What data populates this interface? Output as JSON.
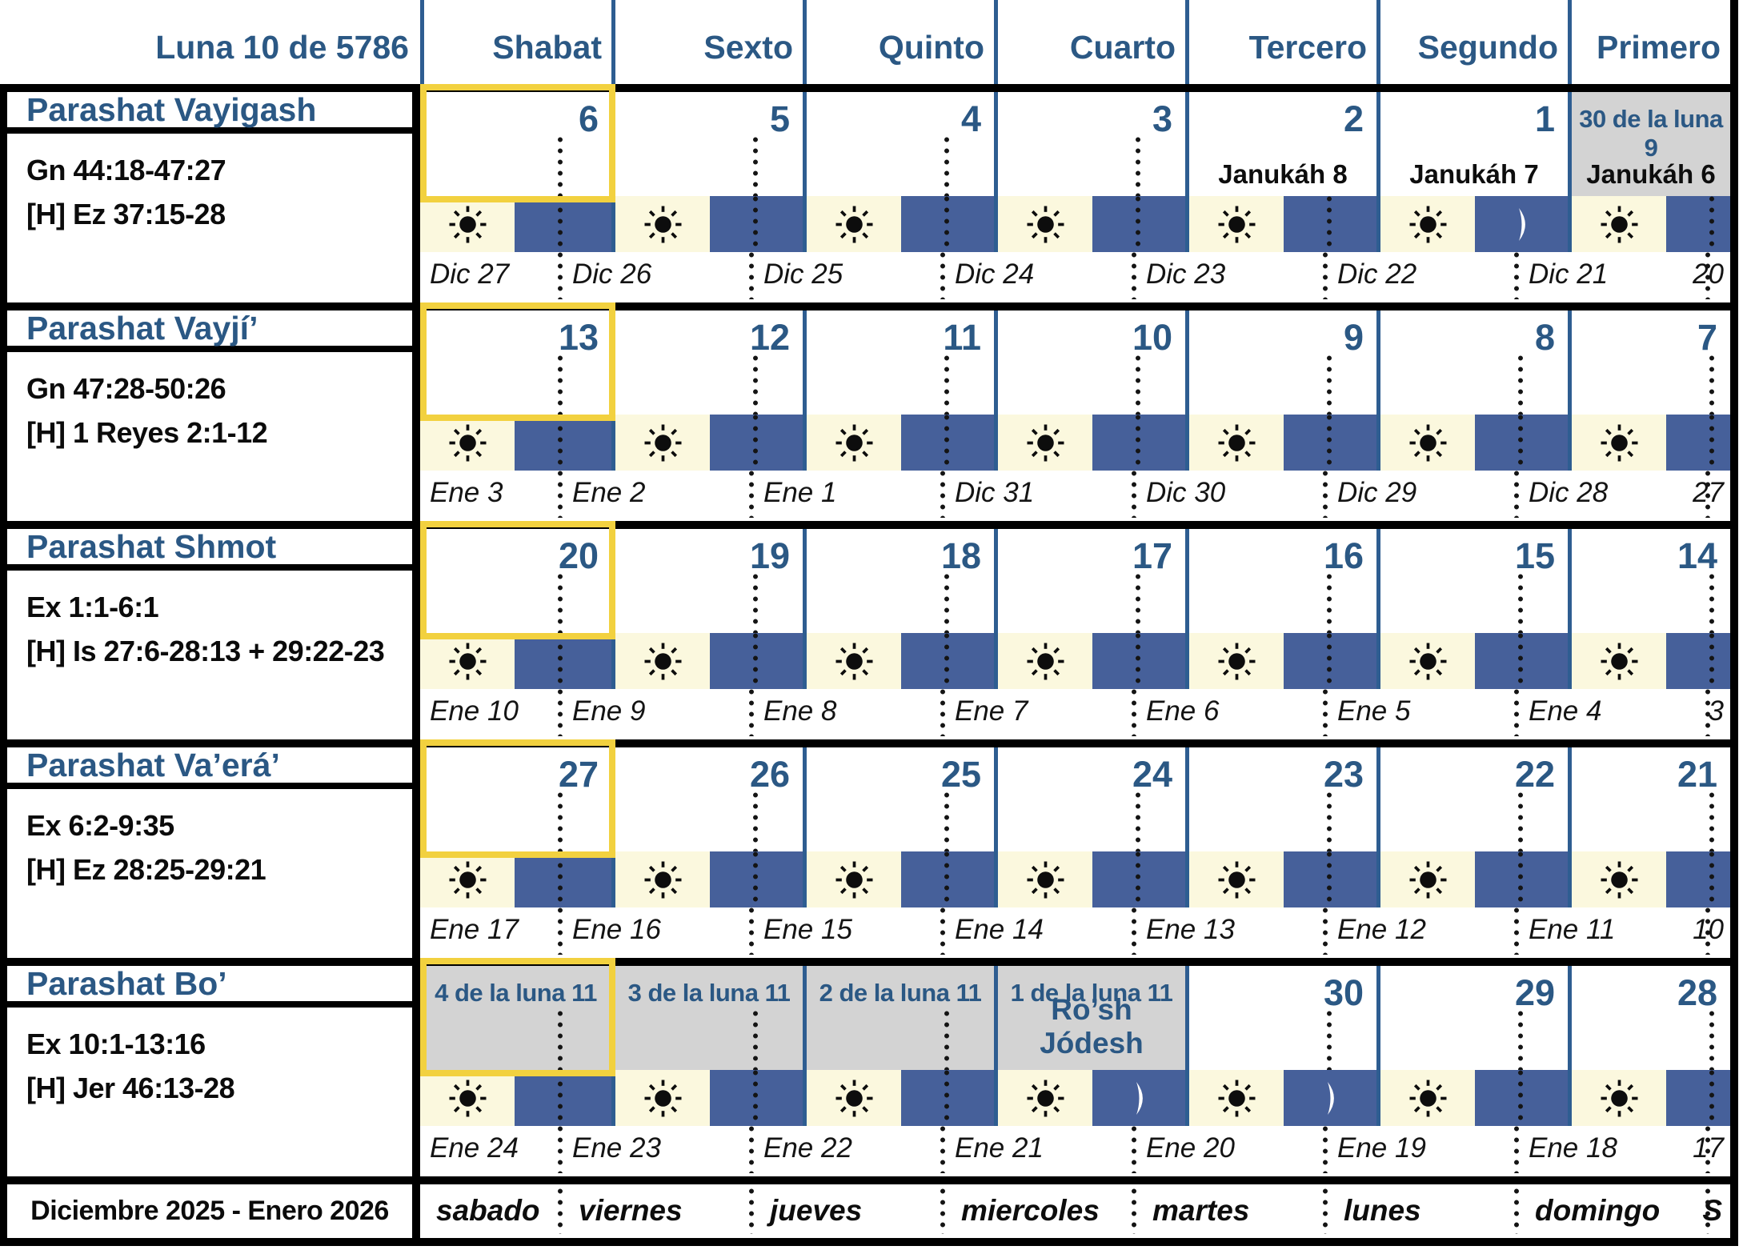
{
  "header": {
    "title": "Luna 10 de 5786",
    "day_columns": [
      "Shabat",
      "Sexto",
      "Quinto",
      "Cuarto",
      "Tercero",
      "Segundo",
      "Primero"
    ]
  },
  "weeks": [
    {
      "parashah": "Parashat Vayigash",
      "torah_reading": "Gn 44:18-47:27",
      "haftarah": "[H] Ez 37:15-28",
      "days": [
        {
          "label": "6"
        },
        {
          "label": "5"
        },
        {
          "label": "4"
        },
        {
          "label": "3"
        },
        {
          "label": "2",
          "note": "Janukáh 8",
          "note_color": "black"
        },
        {
          "label": "1",
          "note": "Janukáh 7",
          "note_color": "black",
          "moon": true
        },
        {
          "label": "30 de la luna 9",
          "small": true,
          "gray": true,
          "note": "Janukáh 6",
          "note_color": "black"
        }
      ],
      "civil_dates": [
        "Dic 27",
        "Dic 26",
        "Dic 25",
        "Dic 24",
        "Dic 23",
        "Dic 22",
        "Dic 21",
        "20"
      ]
    },
    {
      "parashah": "Parashat Vayjí’",
      "torah_reading": "Gn 47:28-50:26",
      "haftarah": "[H] 1 Reyes 2:1-12",
      "days": [
        {
          "label": "13"
        },
        {
          "label": "12"
        },
        {
          "label": "11"
        },
        {
          "label": "10"
        },
        {
          "label": "9"
        },
        {
          "label": "8"
        },
        {
          "label": "7"
        }
      ],
      "civil_dates": [
        "Ene 3",
        "Ene 2",
        "Ene 1",
        "Dic 31",
        "Dic 30",
        "Dic 29",
        "Dic 28",
        "27"
      ]
    },
    {
      "parashah": "Parashat Shmot",
      "torah_reading": "Ex 1:1-6:1",
      "haftarah": "[H] Is 27:6-28:13 + 29:22-23",
      "days": [
        {
          "label": "20"
        },
        {
          "label": "19"
        },
        {
          "label": "18"
        },
        {
          "label": "17"
        },
        {
          "label": "16"
        },
        {
          "label": "15"
        },
        {
          "label": "14"
        }
      ],
      "civil_dates": [
        "Ene 10",
        "Ene 9",
        "Ene 8",
        "Ene 7",
        "Ene 6",
        "Ene 5",
        "Ene 4",
        "3"
      ]
    },
    {
      "parashah": "Parashat Va’erá’",
      "torah_reading": "Ex 6:2-9:35",
      "haftarah": "[H] Ez 28:25-29:21",
      "days": [
        {
          "label": "27"
        },
        {
          "label": "26"
        },
        {
          "label": "25"
        },
        {
          "label": "24"
        },
        {
          "label": "23"
        },
        {
          "label": "22"
        },
        {
          "label": "21"
        }
      ],
      "civil_dates": [
        "Ene 17",
        "Ene 16",
        "Ene 15",
        "Ene 14",
        "Ene 13",
        "Ene 12",
        "Ene 11",
        "10"
      ]
    },
    {
      "parashah": "Parashat Bo’",
      "torah_reading": "Ex 10:1-13:16",
      "haftarah": "[H] Jer 46:13-28",
      "days": [
        {
          "label": "4 de la luna 11",
          "small": true,
          "gray": true
        },
        {
          "label": "3 de la luna 11",
          "small": true,
          "gray": true
        },
        {
          "label": "2 de la luna 11",
          "small": true,
          "gray": true
        },
        {
          "label": "1 de la luna 11",
          "small": true,
          "gray": true,
          "note": "Ro’sh Jódesh",
          "note_color": "blue",
          "moon": true
        },
        {
          "label": "30",
          "moon": true
        },
        {
          "label": "29"
        },
        {
          "label": "28"
        }
      ],
      "civil_dates": [
        "Ene 24",
        "Ene 23",
        "Ene 22",
        "Ene 21",
        "Ene 20",
        "Ene 19",
        "Ene 18",
        "17"
      ]
    }
  ],
  "footer": {
    "period": "Diciembre 2025 - Enero 2026",
    "weekday_labels": [
      "sabado",
      "viernes",
      "jueves",
      "miercoles",
      "martes",
      "lunes",
      "domingo",
      "S"
    ]
  },
  "icons": {
    "day": "sun-icon",
    "night_crescent": "moon-icon"
  },
  "colors": {
    "accent_text": "#2b5884",
    "line_blue": "#2e5d91",
    "night_block": "#46609a",
    "day_block": "#fbf8de",
    "highlight_border": "#f2d13f",
    "gray_day": "#d3d3d3",
    "ink": "#111111"
  }
}
